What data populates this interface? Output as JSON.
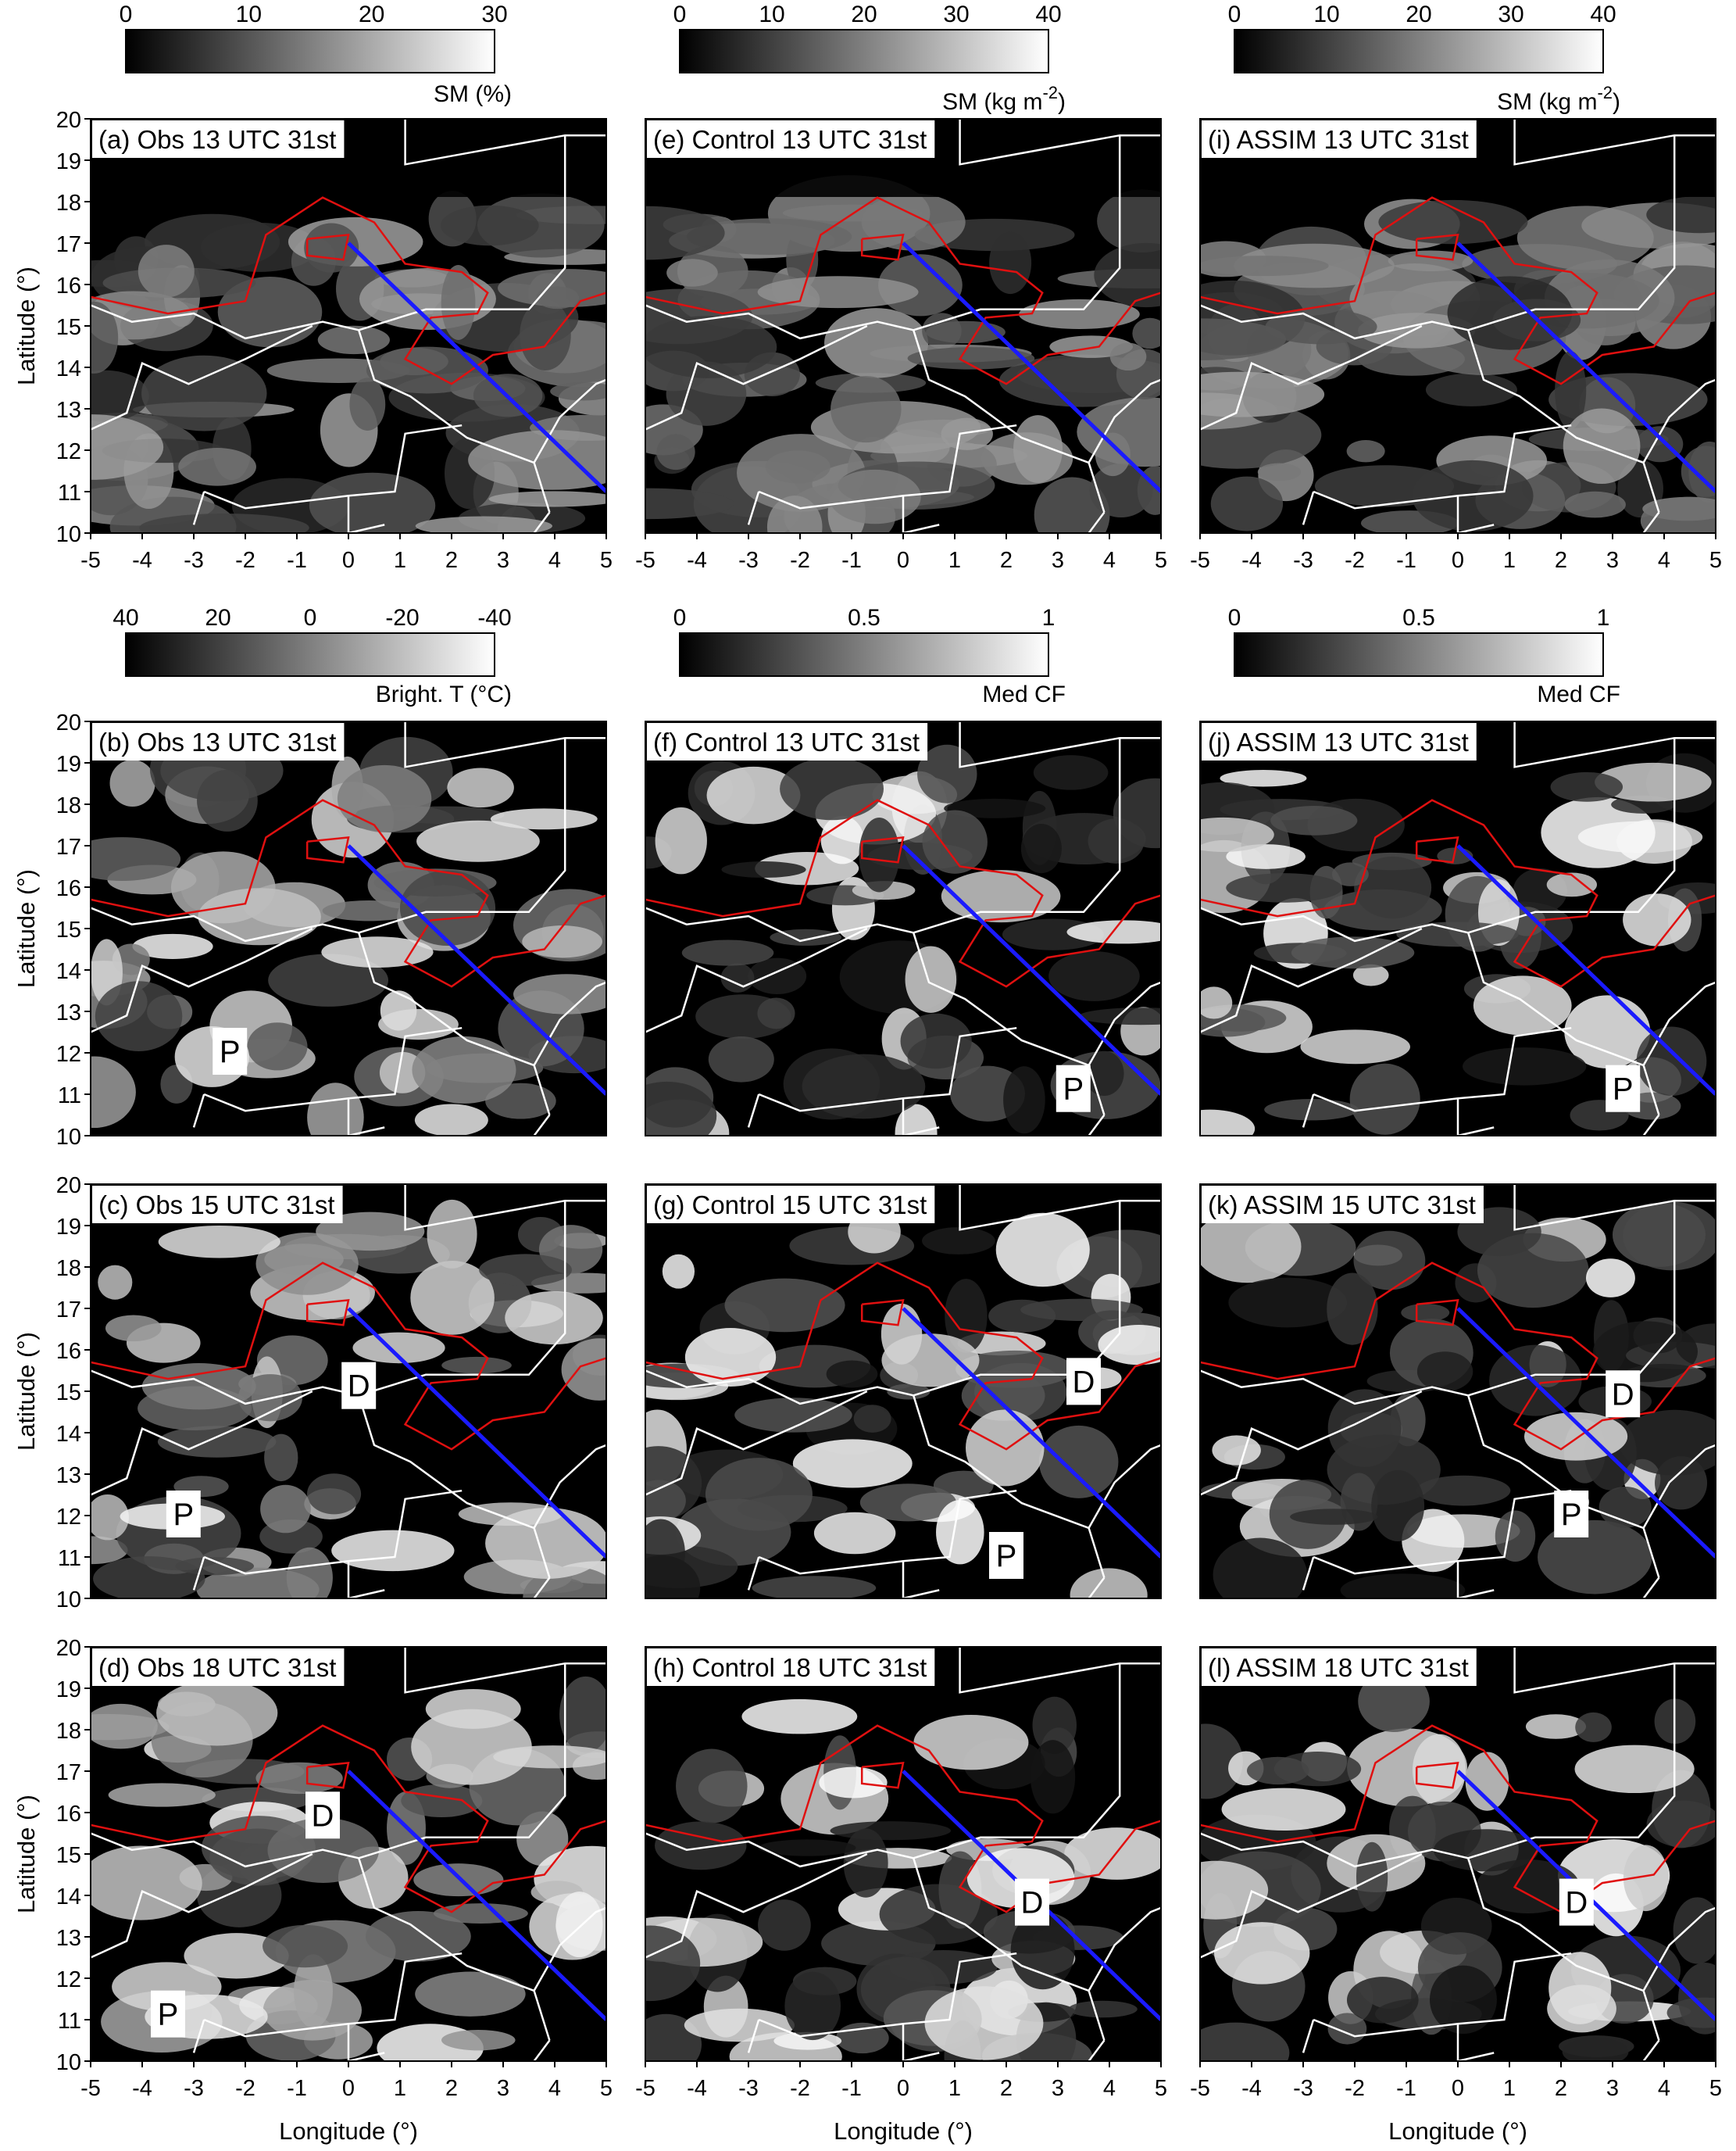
{
  "colorbars": [
    {
      "id": "sm-obs",
      "ticks": [
        "0",
        "10",
        "20",
        "30"
      ],
      "label": "SM (%)"
    },
    {
      "id": "sm-control",
      "ticks": [
        "0",
        "10",
        "20",
        "30",
        "40"
      ],
      "label": "SM (kg m",
      "label_sup": "-2",
      "label_end": ")"
    },
    {
      "id": "sm-assim",
      "ticks": [
        "0",
        "10",
        "20",
        "30",
        "40"
      ],
      "label": "SM (kg m",
      "label_sup": "-2",
      "label_end": ")"
    },
    {
      "id": "bt-obs",
      "ticks": [
        "40",
        "20",
        "0",
        "-20",
        "-40"
      ],
      "label": "Bright. T (°C)"
    },
    {
      "id": "cf-control",
      "ticks": [
        "0",
        "0.5",
        "1"
      ],
      "label": "Med CF"
    },
    {
      "id": "cf-assim",
      "ticks": [
        "0",
        "0.5",
        "1"
      ],
      "label": "Med CF"
    }
  ],
  "axes": {
    "x_ticks": [
      "-5",
      "-4",
      "-3",
      "-2",
      "-1",
      "0",
      "1",
      "2",
      "3",
      "4",
      "5"
    ],
    "y_ticks": [
      "20",
      "19",
      "18",
      "17",
      "16",
      "15",
      "14",
      "13",
      "12",
      "11",
      "10"
    ],
    "xlabel": "Longitude (°)",
    "ylabel": "Latitude (°)"
  },
  "panels": [
    {
      "id": "a",
      "title": "(a) Obs 13 UTC 31st",
      "markers": []
    },
    {
      "id": "b",
      "title": "(b) Obs 13 UTC 31st",
      "markers": [
        {
          "label": "P",
          "lon": -2.3,
          "lat": 12.0
        }
      ]
    },
    {
      "id": "c",
      "title": "(c) Obs 15 UTC 31st",
      "markers": [
        {
          "label": "D",
          "lon": 0.2,
          "lat": 15.1
        },
        {
          "label": "P",
          "lon": -3.2,
          "lat": 12.0
        }
      ]
    },
    {
      "id": "d",
      "title": "(d) Obs 18 UTC 31st",
      "markers": [
        {
          "label": "D",
          "lon": -0.5,
          "lat": 15.9
        },
        {
          "label": "P",
          "lon": -3.5,
          "lat": 11.1
        }
      ]
    },
    {
      "id": "e",
      "title": "(e) Control 13 UTC 31st",
      "markers": []
    },
    {
      "id": "f",
      "title": "(f) Control 13 UTC 31st",
      "markers": [
        {
          "label": "P",
          "lon": 3.3,
          "lat": 11.1
        }
      ]
    },
    {
      "id": "g",
      "title": "(g) Control 15 UTC 31st",
      "markers": [
        {
          "label": "D",
          "lon": 3.5,
          "lat": 15.2
        },
        {
          "label": "P",
          "lon": 2.0,
          "lat": 11.0
        }
      ]
    },
    {
      "id": "h",
      "title": "(h) Control 18 UTC 31st",
      "markers": [
        {
          "label": "D",
          "lon": 2.5,
          "lat": 13.8
        }
      ]
    },
    {
      "id": "i",
      "title": "(i) ASSIM 13 UTC 31st",
      "markers": []
    },
    {
      "id": "j",
      "title": "(j) ASSIM 13 UTC 31st",
      "markers": [
        {
          "label": "P",
          "lon": 3.2,
          "lat": 11.1
        }
      ]
    },
    {
      "id": "k",
      "title": "(k) ASSIM 15 UTC 31st",
      "markers": [
        {
          "label": "D",
          "lon": 3.2,
          "lat": 14.9
        },
        {
          "label": "P",
          "lon": 2.2,
          "lat": 12.0
        }
      ]
    },
    {
      "id": "l",
      "title": "(l) ASSIM 18 UTC 31st",
      "markers": [
        {
          "label": "D",
          "lon": 2.3,
          "lat": 13.8
        }
      ]
    }
  ],
  "transect": {
    "start": {
      "lon": 0.0,
      "lat": 17.0
    },
    "end": {
      "lon": 5.0,
      "lat": 11.0
    },
    "color": "#1a1aff"
  },
  "colors": {
    "contour": "#e01010",
    "border": "#ffffff",
    "transect": "#1a1aff",
    "background": "#000000"
  }
}
